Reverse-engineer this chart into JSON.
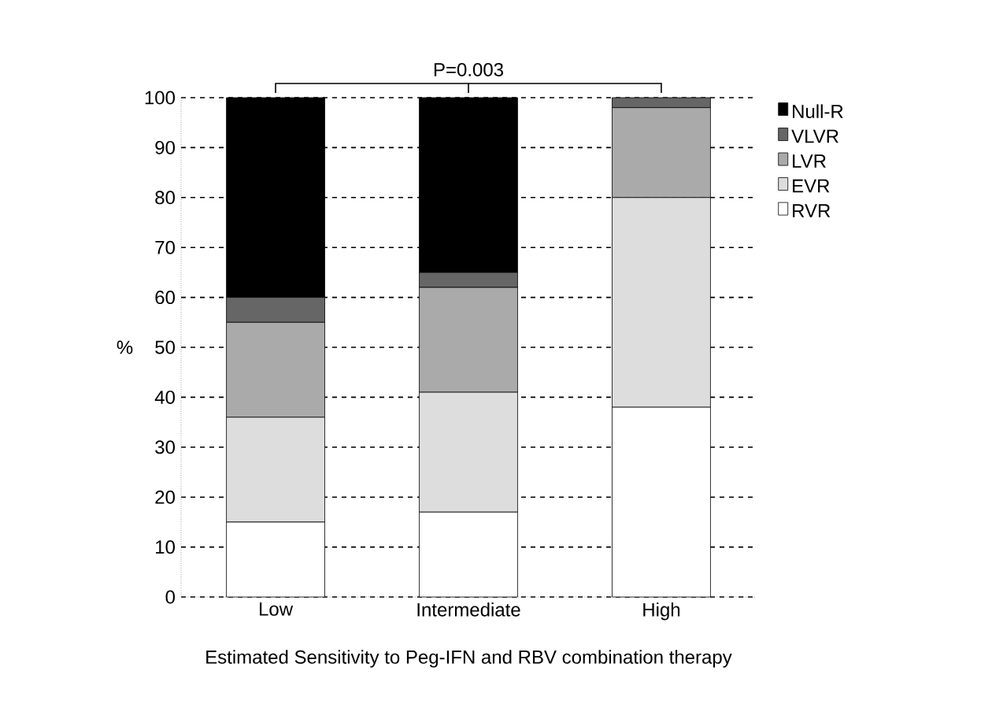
{
  "chart_data": {
    "type": "bar",
    "stacked": true,
    "xlabel": "Estimated Sensitivity to Peg-IFN and RBV combination therapy",
    "ylabel": "%",
    "categories": [
      "Low",
      "Intermediate",
      "High"
    ],
    "series": [
      {
        "name": "RVR",
        "color": "#ffffff",
        "values": [
          15,
          17,
          38
        ]
      },
      {
        "name": "EVR",
        "color": "#dddddd",
        "values": [
          21,
          24,
          42
        ]
      },
      {
        "name": "LVR",
        "color": "#aaaaaa",
        "values": [
          19,
          21,
          18
        ]
      },
      {
        "name": "VLVR",
        "color": "#666666",
        "values": [
          5,
          3,
          2
        ]
      },
      {
        "name": "Null-R",
        "color": "#000000",
        "values": [
          40,
          35,
          0
        ]
      }
    ],
    "ylim": [
      0,
      100
    ],
    "yticks": [
      0,
      10,
      20,
      30,
      40,
      50,
      60,
      70,
      80,
      90,
      100
    ],
    "grid": "y",
    "legend": "right",
    "annotations": [
      {
        "text": "P=0.003",
        "y": 100
      }
    ]
  }
}
